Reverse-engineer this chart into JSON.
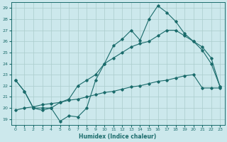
{
  "xlabel": "Humidex (Indice chaleur)",
  "bg_color": "#cce8ec",
  "grid_color": "#aacccc",
  "line_color": "#1a6b6b",
  "xlim": [
    -0.5,
    23.5
  ],
  "ylim": [
    18.5,
    29.5
  ],
  "xticks": [
    0,
    1,
    2,
    3,
    4,
    5,
    6,
    7,
    8,
    9,
    10,
    11,
    12,
    13,
    14,
    15,
    16,
    17,
    18,
    19,
    20,
    21,
    22,
    23
  ],
  "yticks": [
    19,
    20,
    21,
    22,
    23,
    24,
    25,
    26,
    27,
    28,
    29
  ],
  "line1_x": [
    0,
    1,
    2,
    3,
    4,
    5,
    6,
    7,
    8,
    9,
    10,
    11,
    12,
    13,
    14,
    15,
    16,
    17,
    18,
    19,
    20,
    21,
    22,
    23
  ],
  "line1_y": [
    22.5,
    21.5,
    20.0,
    19.8,
    20.0,
    18.8,
    19.3,
    19.2,
    20.0,
    22.5,
    24.0,
    25.6,
    26.2,
    27.0,
    26.1,
    28.0,
    29.2,
    28.6,
    27.8,
    26.7,
    26.0,
    25.2,
    24.0,
    21.9
  ],
  "line2_x": [
    0,
    1,
    2,
    3,
    4,
    5,
    6,
    7,
    8,
    9,
    10,
    11,
    12,
    13,
    14,
    15,
    16,
    17,
    18,
    19,
    20,
    21,
    22,
    23
  ],
  "line2_y": [
    19.8,
    20.0,
    20.1,
    20.3,
    20.4,
    20.5,
    20.7,
    20.8,
    21.0,
    21.2,
    21.4,
    21.5,
    21.7,
    21.9,
    22.0,
    22.2,
    22.4,
    22.5,
    22.7,
    22.9,
    23.0,
    21.8,
    21.8,
    21.8
  ],
  "line3_x": [
    0,
    1,
    2,
    3,
    4,
    5,
    6,
    7,
    8,
    9,
    10,
    11,
    12,
    13,
    14,
    15,
    16,
    17,
    18,
    19,
    20,
    21,
    22,
    23
  ],
  "line3_y": [
    22.5,
    21.5,
    20.0,
    20.0,
    20.0,
    20.5,
    20.8,
    22.0,
    22.5,
    23.0,
    24.0,
    24.5,
    25.0,
    25.5,
    25.8,
    26.0,
    26.5,
    27.0,
    27.0,
    26.5,
    26.0,
    25.5,
    24.5,
    21.9
  ]
}
